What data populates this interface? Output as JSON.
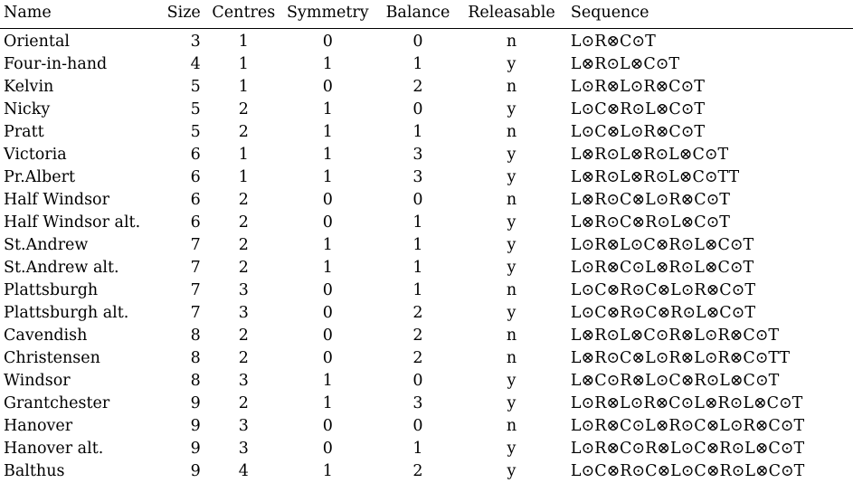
{
  "headers": [
    "Name",
    "Size",
    "Centres",
    "Symmetry",
    "Balance",
    "Releasable",
    "Sequence"
  ],
  "rows": [
    [
      "Oriental",
      "3",
      "1",
      "0",
      "0",
      "n",
      "L⊙R⊗C⊙T"
    ],
    [
      "Four-in-hand",
      "4",
      "1",
      "1",
      "1",
      "y",
      "L⊗R⊙L⊗C⊙T"
    ],
    [
      "Kelvin",
      "5",
      "1",
      "0",
      "2",
      "n",
      "L⊙R⊗L⊙R⊗C⊙T"
    ],
    [
      "Nicky",
      "5",
      "2",
      "1",
      "0",
      "y",
      "L⊙C⊗R⊙L⊗C⊙T"
    ],
    [
      "Pratt",
      "5",
      "2",
      "1",
      "1",
      "n",
      "L⊙C⊗L⊙R⊗C⊙T"
    ],
    [
      "Victoria",
      "6",
      "1",
      "1",
      "3",
      "y",
      "L⊗R⊙L⊗R⊙L⊗C⊙T"
    ],
    [
      "Pr.Albert",
      "6",
      "1",
      "1",
      "3",
      "y",
      "L⊗R⊙L⊗R⊙L⊗C⊙TT"
    ],
    [
      "Half Windsor",
      "6",
      "2",
      "0",
      "0",
      "n",
      "L⊗R⊙C⊗L⊙R⊗C⊙T"
    ],
    [
      "Half Windsor alt.",
      "6",
      "2",
      "0",
      "1",
      "y",
      "L⊗R⊙C⊗R⊙L⊗C⊙T"
    ],
    [
      "St.Andrew",
      "7",
      "2",
      "1",
      "1",
      "y",
      "L⊙R⊗L⊙C⊗R⊙L⊗C⊙T"
    ],
    [
      "St.Andrew alt.",
      "7",
      "2",
      "1",
      "1",
      "y",
      "L⊙R⊗C⊙L⊗R⊙L⊗C⊙T"
    ],
    [
      "Plattsburgh",
      "7",
      "3",
      "0",
      "1",
      "n",
      "L⊙C⊗R⊙C⊗L⊙R⊗C⊙T"
    ],
    [
      "Plattsburgh alt.",
      "7",
      "3",
      "0",
      "2",
      "y",
      "L⊙C⊗R⊙C⊗R⊙L⊗C⊙T"
    ],
    [
      "Cavendish",
      "8",
      "2",
      "0",
      "2",
      "n",
      "L⊗R⊙L⊗C⊙R⊗L⊙R⊗C⊙T"
    ],
    [
      "Christensen",
      "8",
      "2",
      "0",
      "2",
      "n",
      "L⊗R⊙C⊗L⊙R⊗L⊙R⊗C⊙TT"
    ],
    [
      "Windsor",
      "8",
      "3",
      "1",
      "0",
      "y",
      "L⊗C⊙R⊗L⊙C⊗R⊙L⊗C⊙T"
    ],
    [
      "Grantchester",
      "9",
      "2",
      "1",
      "3",
      "y",
      "L⊙R⊗L⊙R⊗C⊙L⊗R⊙L⊗C⊙T"
    ],
    [
      "Hanover",
      "9",
      "3",
      "0",
      "0",
      "n",
      "L⊙R⊗C⊙L⊗R⊙C⊗L⊙R⊗C⊙T"
    ],
    [
      "Hanover alt.",
      "9",
      "3",
      "0",
      "1",
      "y",
      "L⊙R⊗C⊙R⊗L⊙C⊗R⊙L⊗C⊙T"
    ],
    [
      "Balthus",
      "9",
      "4",
      "1",
      "2",
      "y",
      "L⊙C⊗R⊙C⊗L⊙C⊗R⊙L⊗C⊙T"
    ]
  ]
}
